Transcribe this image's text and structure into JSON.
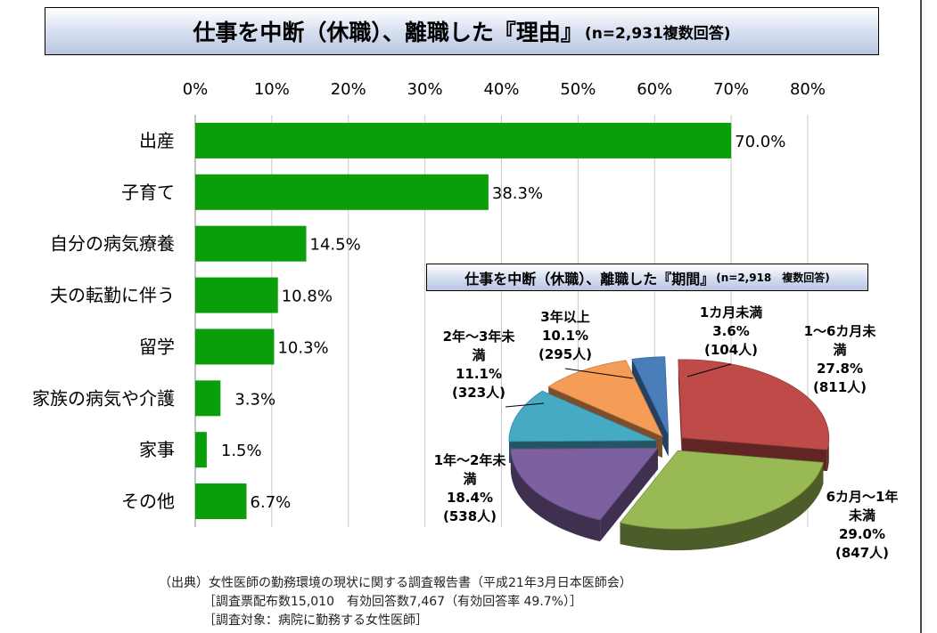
{
  "header": {
    "title_main": "仕事を中断（休職）、離職した『理由』",
    "title_note": "(n=2,931複数回答)"
  },
  "chart_data": [
    {
      "type": "bar",
      "orientation": "horizontal",
      "categories": [
        "出産",
        "子育て",
        "自分の病気療養",
        "夫の転勤に伴う",
        "留学",
        "家族の病気や介護",
        "家事",
        "その他"
      ],
      "values": [
        70.0,
        38.3,
        14.5,
        10.8,
        10.3,
        3.3,
        1.5,
        6.7
      ],
      "value_labels": [
        "70.0%",
        "38.3%",
        "14.5%",
        "10.8%",
        "10.3%",
        "3.3%",
        "1.5%",
        "6.7%"
      ],
      "xlim": [
        0,
        80
      ],
      "ticks": [
        "0%",
        "10%",
        "20%",
        "30%",
        "40%",
        "50%",
        "60%",
        "70%",
        "80%"
      ],
      "grid": true,
      "bar_color": "#0a9e0a"
    },
    {
      "type": "pie",
      "title_main": "仕事を中断（休職）、離職した『期間』",
      "title_note": "(n=2,918　複数回答)",
      "slices": [
        {
          "label_lines": [
            "1カ月未満"
          ],
          "percent": "3.6%",
          "count": "(104人)",
          "value": 3.6,
          "color": "#4a7ebb"
        },
        {
          "label_lines": [
            "1～6カ月未",
            "満"
          ],
          "percent": "27.8%",
          "count": "(811人)",
          "value": 27.8,
          "color": "#be4b48"
        },
        {
          "label_lines": [
            "6カ月～1年",
            "未満"
          ],
          "percent": "29.0%",
          "count": "(847人)",
          "value": 29.0,
          "color": "#98b954"
        },
        {
          "label_lines": [
            "1年～2年未",
            "満"
          ],
          "percent": "18.4%",
          "count": "(538人)",
          "value": 18.4,
          "color": "#7d60a0"
        },
        {
          "label_lines": [
            "2年～3年未",
            "満"
          ],
          "percent": "11.1%",
          "count": "(323人)",
          "value": 11.1,
          "color": "#46aac5"
        },
        {
          "label_lines": [
            "3年以上"
          ],
          "percent": "10.1%",
          "count": "(295人)",
          "value": 10.1,
          "color": "#f59d56"
        }
      ]
    }
  ],
  "source": {
    "line1": "（出典）女性医師の勤務環境の現状に関する調査報告書（平成21年3月日本医師会）",
    "line2": "［調査票配布数15,010　有効回答数7,467（有効回答率 49.7%）］",
    "line3": "［調査対象：病院に勤務する女性医師］"
  }
}
